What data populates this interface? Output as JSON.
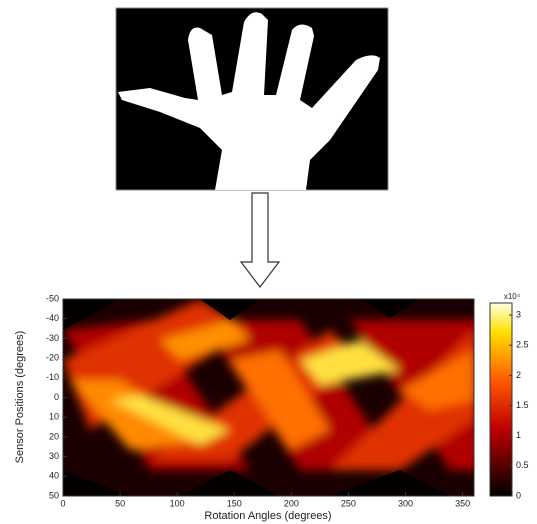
{
  "plot": {
    "x_label": "Rotation Angles (degrees)",
    "y_label": "Sensor Positions (degrees)",
    "xlim": [
      0,
      360
    ],
    "xticks": [
      0,
      50,
      100,
      150,
      200,
      250,
      300,
      350
    ],
    "ylim": [
      -50,
      50
    ],
    "yticks": [
      -50,
      -40,
      -30,
      -20,
      -10,
      0,
      10,
      20,
      30,
      40,
      50
    ],
    "colorbar": {
      "lim": [
        0,
        3.2
      ],
      "ticks": [
        0,
        0.5,
        1,
        1.5,
        2,
        2.5,
        3
      ],
      "exponent": "x10⁴"
    }
  }
}
